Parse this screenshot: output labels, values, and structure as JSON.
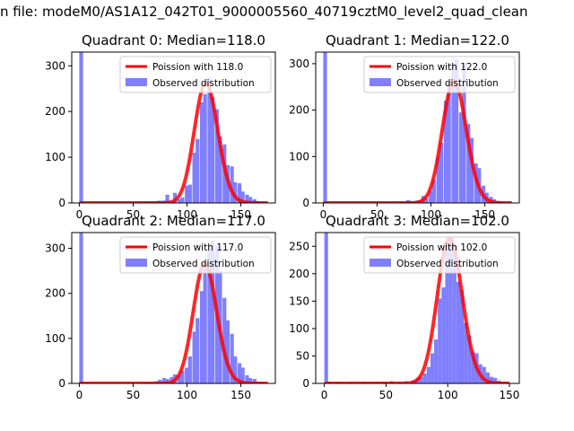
{
  "suptitle": "n file: modeM0/AS1A12_042T01_9000005560_40719cztM0_level2_quad_clean",
  "colors": {
    "poisson_line": "#ff0000",
    "observed_bars": "#7f7fff"
  },
  "chart_data": [
    {
      "type": "bar",
      "title": "Quadrant 0: Median=118.0",
      "median": 118.0,
      "xlim": [
        -7,
        182
      ],
      "ylim": [
        0,
        330
      ],
      "xticks": [
        0,
        50,
        100,
        150
      ],
      "yticks": [
        0,
        100,
        200,
        300
      ],
      "legend": {
        "placement": "top-right",
        "entries": [
          "Poission with 118.0",
          "Observed distribution"
        ]
      },
      "series": [
        {
          "name": "Poission with 118.0",
          "kind": "line",
          "lambda": 118.0,
          "x_range": [
            0,
            175
          ],
          "scale": 7148
        },
        {
          "name": "Observed distribution",
          "kind": "histogram",
          "bin_width": 3.5,
          "bins": [
            [
              0,
              330
            ],
            [
              45,
              2
            ],
            [
              55,
              3
            ],
            [
              60,
              2
            ],
            [
              66,
              3
            ],
            [
              70,
              4
            ],
            [
              73,
              5
            ],
            [
              77,
              5
            ],
            [
              80,
              18
            ],
            [
              84,
              3
            ],
            [
              87,
              22
            ],
            [
              91,
              8
            ],
            [
              94,
              12
            ],
            [
              98,
              38
            ],
            [
              101,
              40
            ],
            [
              105,
              110
            ],
            [
              108,
              140
            ],
            [
              112,
              220
            ],
            [
              115,
              238
            ],
            [
              119,
              275
            ],
            [
              122,
              232
            ],
            [
              126,
              205
            ],
            [
              129,
              145
            ],
            [
              133,
              128
            ],
            [
              136,
              83
            ],
            [
              140,
              80
            ],
            [
              143,
              45
            ],
            [
              147,
              43
            ],
            [
              150,
              25
            ],
            [
              154,
              18
            ],
            [
              157,
              13
            ],
            [
              161,
              8
            ],
            [
              164,
              4
            ],
            [
              168,
              2
            ],
            [
              172,
              1
            ]
          ]
        }
      ]
    },
    {
      "type": "bar",
      "title": "Quadrant 1: Median=122.0",
      "median": 122.0,
      "xlim": [
        -7,
        182
      ],
      "ylim": [
        0,
        325
      ],
      "xticks": [
        0,
        50,
        100,
        150
      ],
      "yticks": [
        0,
        100,
        200,
        300
      ],
      "legend": {
        "placement": "top-right",
        "entries": [
          "Poission with 122.0",
          "Observed distribution"
        ]
      },
      "series": [
        {
          "name": "Poission with 122.0",
          "kind": "line",
          "lambda": 122.0,
          "x_range": [
            0,
            175
          ],
          "scale": 7276
        },
        {
          "name": "Observed distribution",
          "kind": "histogram",
          "bin_width": 3.5,
          "bins": [
            [
              0,
              325
            ],
            [
              50,
              1
            ],
            [
              60,
              2
            ],
            [
              70,
              3
            ],
            [
              73,
              2
            ],
            [
              77,
              6
            ],
            [
              80,
              4
            ],
            [
              84,
              4
            ],
            [
              87,
              6
            ],
            [
              91,
              15
            ],
            [
              94,
              10
            ],
            [
              98,
              25
            ],
            [
              101,
              50
            ],
            [
              105,
              100
            ],
            [
              108,
              130
            ],
            [
              112,
              220
            ],
            [
              115,
              260
            ],
            [
              119,
              300
            ],
            [
              122,
              310
            ],
            [
              126,
              195
            ],
            [
              129,
              300
            ],
            [
              133,
              170
            ],
            [
              136,
              140
            ],
            [
              140,
              85
            ],
            [
              143,
              75
            ],
            [
              147,
              37
            ],
            [
              150,
              22
            ],
            [
              154,
              13
            ],
            [
              157,
              8
            ],
            [
              161,
              4
            ],
            [
              164,
              2
            ],
            [
              168,
              1
            ],
            [
              171,
              1
            ]
          ]
        }
      ]
    },
    {
      "type": "bar",
      "title": "Quadrant 2: Median=117.0",
      "median": 117.0,
      "xlim": [
        -7,
        182
      ],
      "ylim": [
        0,
        335
      ],
      "xticks": [
        0,
        50,
        100,
        150
      ],
      "yticks": [
        0,
        100,
        200,
        300
      ],
      "legend": {
        "placement": "top-right",
        "entries": [
          "Poission with 117.0",
          "Observed distribution"
        ]
      },
      "series": [
        {
          "name": "Poission with 117.0",
          "kind": "line",
          "lambda": 117.0,
          "x_range": [
            0,
            175
          ],
          "scale": 7200
        },
        {
          "name": "Observed distribution",
          "kind": "histogram",
          "bin_width": 3.5,
          "bins": [
            [
              0,
              335
            ],
            [
              60,
              2
            ],
            [
              66,
              3
            ],
            [
              70,
              5
            ],
            [
              73,
              8
            ],
            [
              77,
              12
            ],
            [
              80,
              10
            ],
            [
              84,
              14
            ],
            [
              87,
              20
            ],
            [
              91,
              18
            ],
            [
              94,
              28
            ],
            [
              98,
              35
            ],
            [
              101,
              60
            ],
            [
              105,
              115
            ],
            [
              108,
              145
            ],
            [
              112,
              205
            ],
            [
              115,
              260
            ],
            [
              119,
              300
            ],
            [
              122,
              318
            ],
            [
              126,
              305
            ],
            [
              129,
              250
            ],
            [
              133,
              190
            ],
            [
              136,
              140
            ],
            [
              140,
              110
            ],
            [
              143,
              60
            ],
            [
              147,
              45
            ],
            [
              150,
              35
            ],
            [
              154,
              18
            ],
            [
              157,
              12
            ],
            [
              161,
              10
            ],
            [
              164,
              4
            ],
            [
              168,
              2
            ]
          ]
        }
      ]
    },
    {
      "type": "bar",
      "title": "Quadrant 3: Median=102.0",
      "median": 102.0,
      "xlim": [
        -7,
        158
      ],
      "ylim": [
        0,
        275
      ],
      "xticks": [
        0,
        50,
        100,
        150
      ],
      "yticks": [
        0,
        50,
        100,
        150,
        200,
        250
      ],
      "legend": {
        "placement": "top-right",
        "entries": [
          "Poission with 102.0",
          "Observed distribution"
        ]
      },
      "series": [
        {
          "name": "Poission with 102.0",
          "kind": "line",
          "lambda": 102.0,
          "x_range": [
            0,
            150
          ],
          "scale": 6700
        },
        {
          "name": "Observed distribution",
          "kind": "histogram",
          "bin_width": 3.0,
          "bins": [
            [
              0,
              275
            ],
            [
              3,
              3
            ],
            [
              10,
              2
            ],
            [
              20,
              2
            ],
            [
              30,
              2
            ],
            [
              40,
              2
            ],
            [
              47,
              3
            ],
            [
              53,
              4
            ],
            [
              60,
              3
            ],
            [
              65,
              4
            ],
            [
              71,
              6
            ],
            [
              74,
              10
            ],
            [
              77,
              12
            ],
            [
              80,
              18
            ],
            [
              83,
              30
            ],
            [
              86,
              55
            ],
            [
              89,
              80
            ],
            [
              92,
              155
            ],
            [
              95,
              175
            ],
            [
              98,
              255
            ],
            [
              101,
              265
            ],
            [
              104,
              240
            ],
            [
              107,
              185
            ],
            [
              110,
              170
            ],
            [
              113,
              110
            ],
            [
              116,
              88
            ],
            [
              119,
              58
            ],
            [
              122,
              55
            ],
            [
              125,
              35
            ],
            [
              128,
              30
            ],
            [
              131,
              20
            ],
            [
              134,
              12
            ],
            [
              137,
              10
            ],
            [
              140,
              5
            ],
            [
              143,
              3
            ],
            [
              146,
              2
            ]
          ]
        }
      ]
    }
  ]
}
